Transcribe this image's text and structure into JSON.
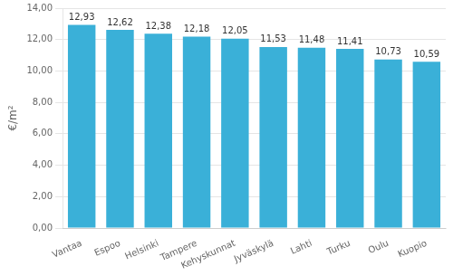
{
  "chart_data": {
    "type": "bar",
    "ylabel": "€/m²",
    "categories": [
      "Vantaa",
      "Espoo",
      "Helsinki",
      "Tampere",
      "Kehyskunnat",
      "Jyväskylä",
      "Lahti",
      "Turku",
      "Oulu",
      "Kuopio"
    ],
    "values": [
      12.93,
      12.62,
      12.38,
      12.18,
      12.05,
      11.53,
      11.48,
      11.41,
      10.73,
      10.59
    ],
    "value_labels": [
      "12,93",
      "12,62",
      "12,38",
      "12,18",
      "12,05",
      "11,53",
      "11,48",
      "11,41",
      "10,73",
      "10,59"
    ],
    "data_labels": true,
    "color": "#3ab0d8",
    "ylim": [
      0,
      14.0
    ],
    "yticks": [
      {
        "value": 0.0,
        "label": "0,00"
      },
      {
        "value": 2.0,
        "label": "2,00"
      },
      {
        "value": 4.0,
        "label": "4,00"
      },
      {
        "value": 6.0,
        "label": "6,00"
      },
      {
        "value": 8.0,
        "label": "8,00"
      },
      {
        "value": 10.0,
        "label": "10,00"
      },
      {
        "value": 12.0,
        "label": "12,00"
      },
      {
        "value": 14.0,
        "label": "14,00"
      }
    ],
    "grid": true
  }
}
